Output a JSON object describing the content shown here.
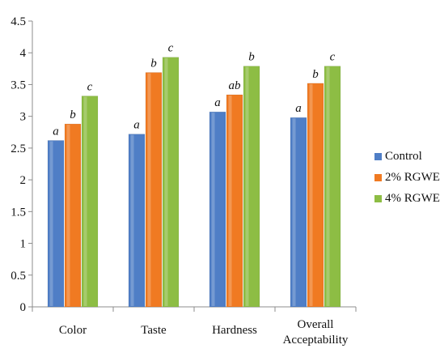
{
  "chart_data": {
    "type": "bar",
    "categories": [
      "Color",
      "Taste",
      "Hardness",
      "Overall Acceptability"
    ],
    "series": [
      {
        "name": "Control",
        "color": "#4f7ec6",
        "values": [
          2.62,
          2.72,
          3.07,
          2.98
        ],
        "labels": [
          "a",
          "a",
          "a",
          "a"
        ]
      },
      {
        "name": "2% RGWE",
        "color": "#f07a22",
        "values": [
          2.88,
          3.69,
          3.34,
          3.52
        ],
        "labels": [
          "b",
          "b",
          "ab",
          "b"
        ]
      },
      {
        "name": "4% RGWE",
        "color": "#8dbd44",
        "values": [
          3.32,
          3.93,
          3.79,
          3.79
        ],
        "labels": [
          "c",
          "c",
          "b",
          "c"
        ]
      }
    ],
    "ylim": [
      0,
      4.5
    ],
    "yticks": [
      "0",
      "0.5",
      "1",
      "1.5",
      "2",
      "2.5",
      "3",
      "3.5",
      "4",
      "4.5"
    ],
    "xlabel": "",
    "ylabel": "",
    "title": "",
    "grid": false,
    "legend_position": "right"
  }
}
